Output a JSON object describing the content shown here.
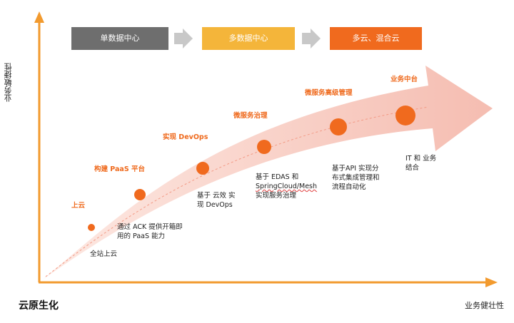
{
  "axes": {
    "y_label": "业务敏捷性",
    "x_label": "业务健壮性",
    "brand": "云原生化"
  },
  "stages": [
    {
      "label": "单数据中心",
      "color": "#6e6e6e"
    },
    {
      "label": "多数据中心",
      "color": "#f4b53a"
    },
    {
      "label": "多云、混合云",
      "color": "#f06a1e"
    }
  ],
  "milestones": [
    {
      "title": "上云",
      "desc_lines": [
        "全站上云"
      ]
    },
    {
      "title": "构建 PaaS 平台",
      "desc_lines": [
        "通过 ACK 提供开箱即",
        "用的 PaaS 能力"
      ]
    },
    {
      "title": "实现 DevOps",
      "desc_lines": [
        "基于 云效 实",
        "现 DevOps"
      ]
    },
    {
      "title": "微服务治理",
      "desc_lines": [
        "基于 EDAS 和",
        "SpringCloud/Mesh",
        "实现服务治理"
      ]
    },
    {
      "title": "微服务高级管理",
      "desc_lines": [
        "基于API 实现分",
        "布式集成管理和",
        "流程自动化"
      ]
    },
    {
      "title": "业务中台",
      "desc_lines": [
        "IT 和 业务",
        "结合"
      ]
    }
  ],
  "colors": {
    "accent": "#f06a1e",
    "axis": "#f29a2e",
    "dot": "#f06a1e",
    "arrow_fill": "#f6c8bd"
  }
}
